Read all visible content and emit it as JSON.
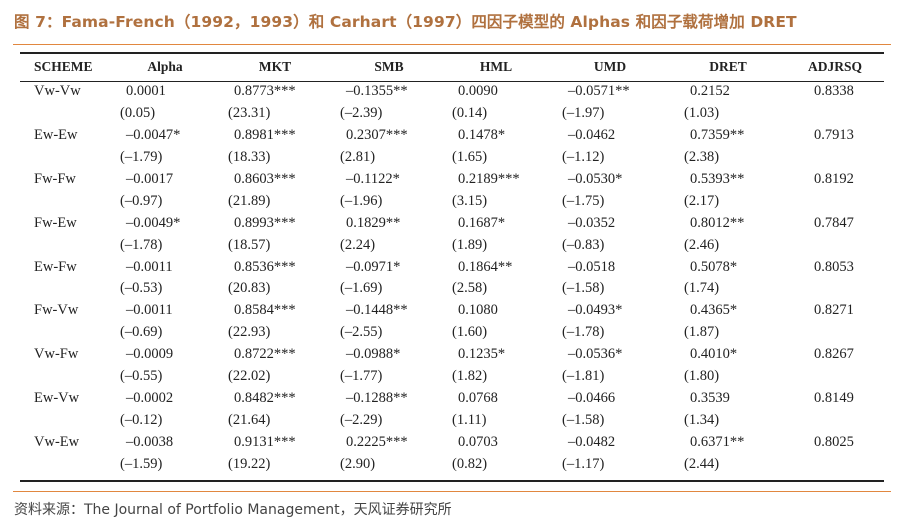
{
  "title": "图 7：Fama-French（1992，1993）和 Carhart（1997）四因子模型的 Alphas 和因子载荷增加 DRET",
  "columns": [
    "SCHEME",
    "Alpha",
    "MKT",
    "SMB",
    "HML",
    "UMD",
    "DRET",
    "ADJRSQ"
  ],
  "rows": [
    {
      "scheme": "Vw-Vw",
      "coef": [
        "0.0001",
        "0.8773***",
        "–0.1355**",
        "0.0090",
        "–0.0571**",
        "0.2152"
      ],
      "t": [
        "(0.05)",
        "(23.31)",
        "(–2.39)",
        "(0.14)",
        "(–1.97)",
        "(1.03)"
      ],
      "adjrsq": "0.8338"
    },
    {
      "scheme": "Ew-Ew",
      "coef": [
        "–0.0047*",
        "0.8981***",
        "0.2307***",
        "0.1478*",
        "–0.0462",
        "0.7359**"
      ],
      "t": [
        "(–1.79)",
        "(18.33)",
        "(2.81)",
        "(1.65)",
        "(–1.12)",
        "(2.38)"
      ],
      "adjrsq": "0.7913"
    },
    {
      "scheme": "Fw-Fw",
      "coef": [
        "–0.0017",
        "0.8603***",
        "–0.1122*",
        "0.2189***",
        "–0.0530*",
        "0.5393**"
      ],
      "t": [
        "(–0.97)",
        "(21.89)",
        "(–1.96)",
        "(3.15)",
        "(–1.75)",
        "(2.17)"
      ],
      "adjrsq": "0.8192"
    },
    {
      "scheme": "Fw-Ew",
      "coef": [
        "–0.0049*",
        "0.8993***",
        "0.1829**",
        "0.1687*",
        "–0.0352",
        "0.8012**"
      ],
      "t": [
        "(–1.78)",
        "(18.57)",
        "(2.24)",
        "(1.89)",
        "(–0.83)",
        "(2.46)"
      ],
      "adjrsq": "0.7847"
    },
    {
      "scheme": "Ew-Fw",
      "coef": [
        "–0.0011",
        "0.8536***",
        "–0.0971*",
        "0.1864**",
        "–0.0518",
        "0.5078*"
      ],
      "t": [
        "(–0.53)",
        "(20.83)",
        "(–1.69)",
        "(2.58)",
        "(–1.58)",
        "(1.74)"
      ],
      "adjrsq": "0.8053"
    },
    {
      "scheme": "Fw-Vw",
      "coef": [
        "–0.0011",
        "0.8584***",
        "–0.1448**",
        "0.1080",
        "–0.0493*",
        "0.4365*"
      ],
      "t": [
        "(–0.69)",
        "(22.93)",
        "(–2.55)",
        "(1.60)",
        "(–1.78)",
        "(1.87)"
      ],
      "adjrsq": "0.8271"
    },
    {
      "scheme": "Vw-Fw",
      "coef": [
        "–0.0009",
        "0.8722***",
        "–0.0988*",
        "0.1235*",
        "–0.0536*",
        "0.4010*"
      ],
      "t": [
        "(–0.55)",
        "(22.02)",
        "(–1.77)",
        "(1.82)",
        "(–1.81)",
        "(1.80)"
      ],
      "adjrsq": "0.8267"
    },
    {
      "scheme": "Ew-Vw",
      "coef": [
        "–0.0002",
        "0.8482***",
        "–0.1288**",
        "0.0768",
        "–0.0466",
        "0.3539"
      ],
      "t": [
        "(–0.12)",
        "(21.64)",
        "(–2.29)",
        "(1.11)",
        "(–1.58)",
        "(1.34)"
      ],
      "adjrsq": "0.8149"
    },
    {
      "scheme": "Vw-Ew",
      "coef": [
        "–0.0038",
        "0.9131***",
        "0.2225***",
        "0.0703",
        "–0.0482",
        "0.6371**"
      ],
      "t": [
        "(–1.59)",
        "(19.22)",
        "(2.90)",
        "(0.82)",
        "(–1.17)",
        "(2.44)"
      ],
      "adjrsq": "0.8025"
    }
  ],
  "source": "资料来源：The Journal of Portfolio Management，天风证券研究所",
  "colors": {
    "title": "#b0713f",
    "accent_rule": "#e1873f",
    "text": "#222222"
  }
}
